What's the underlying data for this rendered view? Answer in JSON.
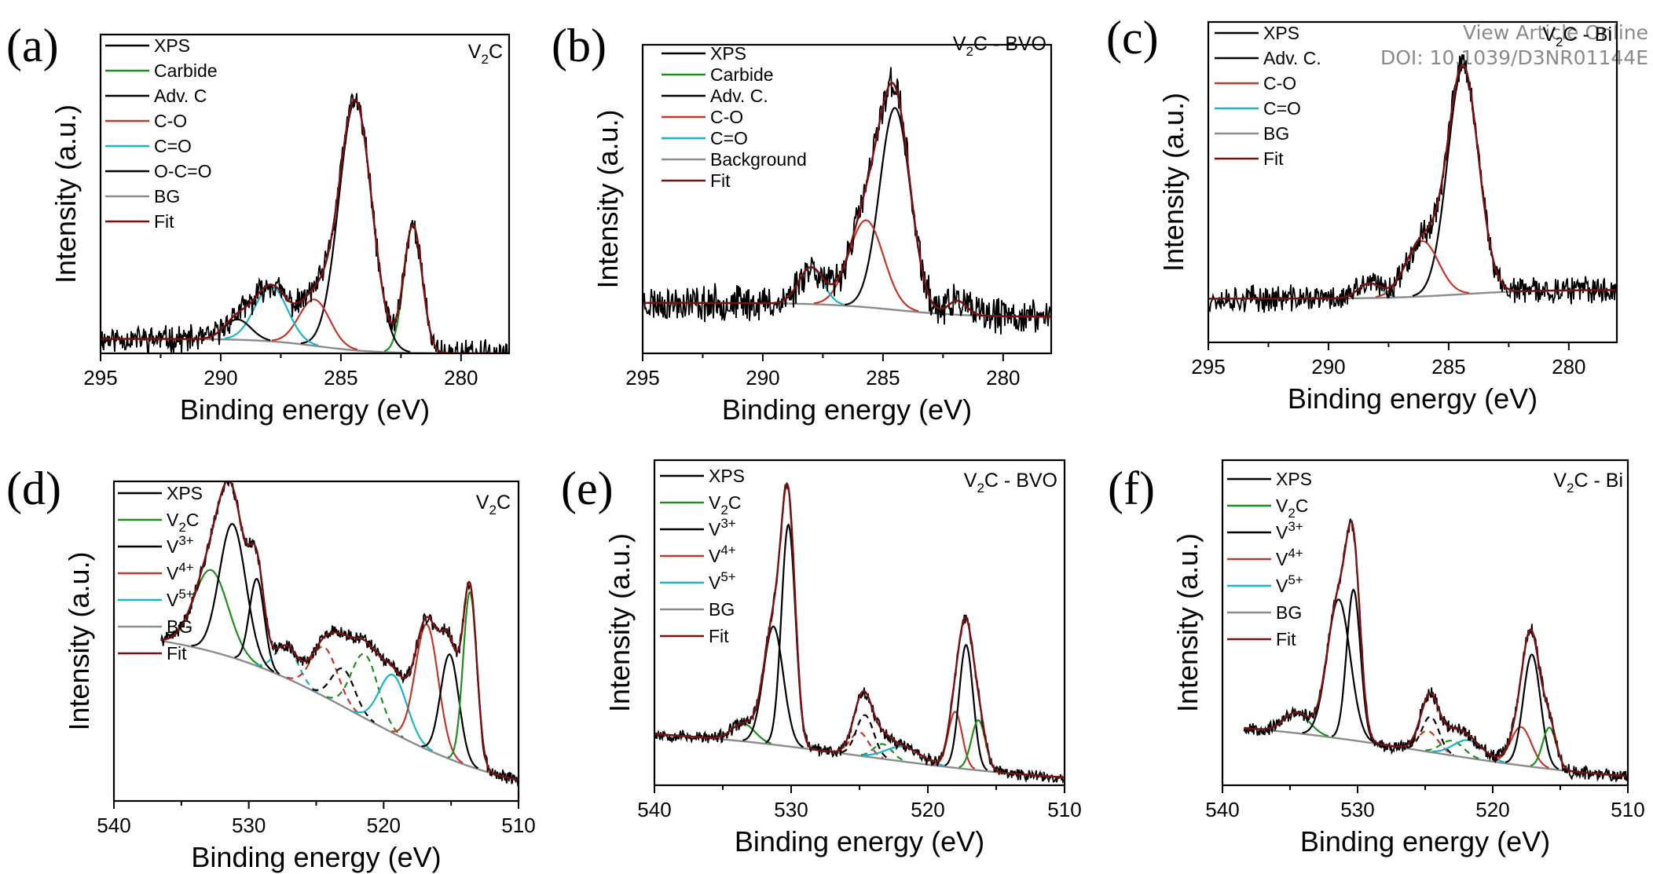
{
  "watermark": {
    "line1": "View Article Online",
    "line2": "DOI: 10.1039/D3NR01144E"
  },
  "colors": {
    "XPS": "#000000",
    "Carbide": "#1f8f1f",
    "Adv. C": "#000000",
    "C-O": "#c0392b",
    "C=O": "#18b4c8",
    "O-C=O": "#000000",
    "BG": "#8c8c8c",
    "Fit": "#7b1010",
    "V2C": "#1f8f1f",
    "V3+": "#000000",
    "V4+": "#c0392b",
    "V5+": "#18b4c8"
  },
  "chart_data": [
    {
      "id": "a",
      "panel_label": "(a)",
      "type": "line",
      "sample": {
        "base": "V",
        "sub": "2",
        "rest": "C"
      },
      "xlabel": "Binding energy (eV)",
      "ylabel": "Intensity (a.u.)",
      "xlim": [
        295,
        278
      ],
      "x_reversed": true,
      "ylim": [
        0,
        1.1
      ],
      "xticks": [
        295,
        290,
        285,
        280
      ],
      "xtick_labels": [
        "295",
        "290",
        "285",
        "280"
      ],
      "noise": 0.025,
      "seed": 11,
      "legend": [
        "XPS",
        "Carbide",
        "Adv. C",
        "C-O",
        "C=O",
        "O-C=O",
        "BG",
        "Fit"
      ],
      "background": {
        "start": 0.05,
        "end": 0.0,
        "center": 286,
        "width": 1.2
      },
      "components": [
        {
          "name": "Carbide",
          "center": 282.0,
          "height": 0.44,
          "fwhm": 0.9
        },
        {
          "name": "Adv. C",
          "center": 284.4,
          "height": 0.86,
          "fwhm": 1.6
        },
        {
          "name": "C-O",
          "center": 286.1,
          "height": 0.16,
          "fwhm": 1.5
        },
        {
          "name": "C=O",
          "center": 287.9,
          "height": 0.19,
          "fwhm": 1.6
        },
        {
          "name": "O-C=O",
          "center": 289.3,
          "height": 0.07,
          "fwhm": 1.3
        }
      ]
    },
    {
      "id": "b",
      "panel_label": "(b)",
      "type": "line",
      "sample": {
        "base": "V",
        "sub": "2",
        "rest": "C - BVO"
      },
      "xlabel": "Binding energy (eV)",
      "ylabel": "Intensity (a.u.)",
      "xlim": [
        295,
        278
      ],
      "x_reversed": true,
      "ylim": [
        0,
        1.1
      ],
      "xticks": [
        295,
        290,
        285,
        280
      ],
      "xtick_labels": [
        "295",
        "290",
        "285",
        "280"
      ],
      "noise": 0.035,
      "seed": 23,
      "legend": [
        "XPS",
        "Carbide",
        "Adv. C.",
        "C-O",
        "C=O",
        "Background",
        "Fit"
      ],
      "legend_colors": [
        "XPS",
        "Carbide",
        "Adv. C",
        "C-O",
        "C=O",
        "BG",
        "Fit"
      ],
      "background": {
        "start": 0.18,
        "end": 0.13,
        "center": 284.5,
        "width": 1.5
      },
      "components": [
        {
          "name": "Carbide",
          "center": 281.9,
          "height": 0.05,
          "fwhm": 0.9
        },
        {
          "name": "Adv. C",
          "center": 284.5,
          "height": 0.72,
          "fwhm": 1.5
        },
        {
          "name": "C-O",
          "center": 285.7,
          "height": 0.31,
          "fwhm": 1.7
        },
        {
          "name": "C=O",
          "center": 288.0,
          "height": 0.13,
          "fwhm": 1.2
        }
      ]
    },
    {
      "id": "c",
      "panel_label": "(c)",
      "type": "line",
      "sample": {
        "base": "V",
        "sub": "2",
        "rest": "C - Bi"
      },
      "xlabel": "Binding energy (eV)",
      "ylabel": "Intensity (a.u.)",
      "xlim": [
        295,
        278
      ],
      "x_reversed": true,
      "ylim": [
        0,
        1.1
      ],
      "xticks": [
        295,
        290,
        285,
        280
      ],
      "xtick_labels": [
        "295",
        "290",
        "285",
        "280"
      ],
      "noise": 0.025,
      "seed": 37,
      "legend": [
        "XPS",
        "Adv. C.",
        "C-O",
        "C=O",
        "BG",
        "Fit"
      ],
      "legend_colors": [
        "XPS",
        "Adv. C",
        "C-O",
        "C=O",
        "BG",
        "Fit"
      ],
      "background": {
        "start": 0.15,
        "end": 0.18,
        "center": 284.5,
        "width": 1.5
      },
      "components": [
        {
          "name": "Adv. C",
          "center": 284.4,
          "height": 0.78,
          "fwhm": 1.5
        },
        {
          "name": "C-O",
          "center": 286.1,
          "height": 0.19,
          "fwhm": 1.6
        },
        {
          "name": "C=O",
          "center": 288.3,
          "height": 0.05,
          "fwhm": 1.1
        }
      ]
    },
    {
      "id": "d",
      "panel_label": "(d)",
      "type": "line",
      "sample": {
        "base": "V",
        "sub": "2",
        "rest": "C"
      },
      "xlabel": "Binding energy (eV)",
      "ylabel": "Intensity (a.u.)",
      "xlim": [
        540,
        510
      ],
      "x_reversed": true,
      "ylim": [
        0,
        1.1
      ],
      "xticks": [
        540,
        530,
        520,
        510
      ],
      "xtick_labels": [
        "540",
        "530",
        "520",
        "510"
      ],
      "data_start": 536.5,
      "noise": 0.012,
      "seed": 41,
      "legend": [
        "XPS",
        "V2C",
        "V3+",
        "V4+",
        "V5+",
        "BG",
        "Fit"
      ],
      "background": {
        "start": 0.6,
        "end": 0.0,
        "center": 522,
        "width": 6
      },
      "components": [
        {
          "name": "V2C",
          "center": 532.8,
          "height": 0.28,
          "fwhm": 3.0
        },
        {
          "name": "V3+",
          "center": 531.2,
          "height": 0.46,
          "fwhm": 2.3
        },
        {
          "name": "V3+",
          "center": 529.4,
          "height": 0.3,
          "fwhm": 1.3
        },
        {
          "name": "V5+",
          "center": 527.2,
          "height": 0.11,
          "fwhm": 2.0,
          "dashed": true
        },
        {
          "name": "V4+",
          "center": 524.4,
          "height": 0.17,
          "fwhm": 2.3,
          "dashed": true
        },
        {
          "name": "V3+",
          "center": 523.0,
          "height": 0.13,
          "fwhm": 2.0,
          "dashed": true
        },
        {
          "name": "V2C",
          "center": 521.4,
          "height": 0.22,
          "fwhm": 2.3,
          "dashed": true
        },
        {
          "name": "V5+",
          "center": 519.3,
          "height": 0.2,
          "fwhm": 2.4
        },
        {
          "name": "V4+",
          "center": 516.8,
          "height": 0.43,
          "fwhm": 2.0
        },
        {
          "name": "V3+",
          "center": 515.1,
          "height": 0.36,
          "fwhm": 1.6
        },
        {
          "name": "V2C",
          "center": 513.6,
          "height": 0.6,
          "fwhm": 1.2
        }
      ]
    },
    {
      "id": "e",
      "panel_label": "(e)",
      "type": "line",
      "sample": {
        "base": "V",
        "sub": "2",
        "rest": "C - BVO"
      },
      "xlabel": "Binding energy (eV)",
      "ylabel": "Intensity (a.u.)",
      "xlim": [
        540,
        510
      ],
      "x_reversed": true,
      "ylim": [
        0,
        1.1
      ],
      "xticks": [
        540,
        530,
        520,
        510
      ],
      "xtick_labels": [
        "540",
        "530",
        "520",
        "510"
      ],
      "noise": 0.012,
      "seed": 53,
      "legend": [
        "XPS",
        "V2C",
        "V3+",
        "V4+",
        "V5+",
        "BG",
        "Fit"
      ],
      "background": {
        "start": 0.2,
        "end": 0.0,
        "center": 525,
        "width": 8
      },
      "components": [
        {
          "name": "V2C",
          "center": 533.5,
          "height": 0.06,
          "fwhm": 2.0
        },
        {
          "name": "V3+",
          "center": 531.3,
          "height": 0.4,
          "fwhm": 1.7
        },
        {
          "name": "V3+",
          "center": 530.2,
          "height": 0.75,
          "fwhm": 1.2
        },
        {
          "name": "V4+",
          "center": 525.0,
          "height": 0.08,
          "fwhm": 1.6,
          "dashed": true
        },
        {
          "name": "V3+",
          "center": 524.6,
          "height": 0.14,
          "fwhm": 1.5,
          "dashed": true
        },
        {
          "name": "V2C",
          "center": 523.3,
          "height": 0.05,
          "fwhm": 1.6,
          "dashed": true
        },
        {
          "name": "V5+",
          "center": 521.8,
          "height": 0.05,
          "fwhm": 3.0
        },
        {
          "name": "V4+",
          "center": 518.0,
          "height": 0.19,
          "fwhm": 1.2
        },
        {
          "name": "V3+",
          "center": 517.2,
          "height": 0.42,
          "fwhm": 1.2
        },
        {
          "name": "V2C",
          "center": 516.3,
          "height": 0.17,
          "fwhm": 1.2
        }
      ]
    },
    {
      "id": "f",
      "panel_label": "(f)",
      "type": "line",
      "sample": {
        "base": "V",
        "sub": "2",
        "rest": "C - Bi"
      },
      "xlabel": "Binding energy (eV)",
      "ylabel": "Intensity (a.u.)",
      "xlim": [
        540,
        510
      ],
      "x_reversed": true,
      "ylim": [
        0,
        1.1
      ],
      "xticks": [
        540,
        530,
        520,
        510
      ],
      "xtick_labels": [
        "540",
        "530",
        "520",
        "510"
      ],
      "data_start": 538.4,
      "noise": 0.012,
      "seed": 67,
      "legend": [
        "XPS",
        "V2C",
        "V3+",
        "V4+",
        "V5+",
        "BG",
        "Fit"
      ],
      "background": {
        "start": 0.23,
        "end": 0.0,
        "center": 525,
        "width": 8
      },
      "components": [
        {
          "name": "V2C",
          "center": 534.5,
          "height": 0.07,
          "fwhm": 2.2
        },
        {
          "name": "V3+",
          "center": 531.4,
          "height": 0.47,
          "fwhm": 2.0
        },
        {
          "name": "V3+",
          "center": 530.3,
          "height": 0.51,
          "fwhm": 1.2
        },
        {
          "name": "V3+",
          "center": 524.6,
          "height": 0.12,
          "fwhm": 1.5,
          "dashed": true
        },
        {
          "name": "V4+",
          "center": 524.8,
          "height": 0.07,
          "fwhm": 1.8,
          "dashed": true
        },
        {
          "name": "V2C",
          "center": 523.0,
          "height": 0.05,
          "fwhm": 2.0,
          "dashed": true
        },
        {
          "name": "V5+",
          "center": 521.8,
          "height": 0.06,
          "fwhm": 2.6
        },
        {
          "name": "V4+",
          "center": 517.9,
          "height": 0.13,
          "fwhm": 1.8
        },
        {
          "name": "V3+",
          "center": 517.1,
          "height": 0.38,
          "fwhm": 1.5
        },
        {
          "name": "V2C",
          "center": 515.8,
          "height": 0.14,
          "fwhm": 1.2
        }
      ]
    }
  ]
}
